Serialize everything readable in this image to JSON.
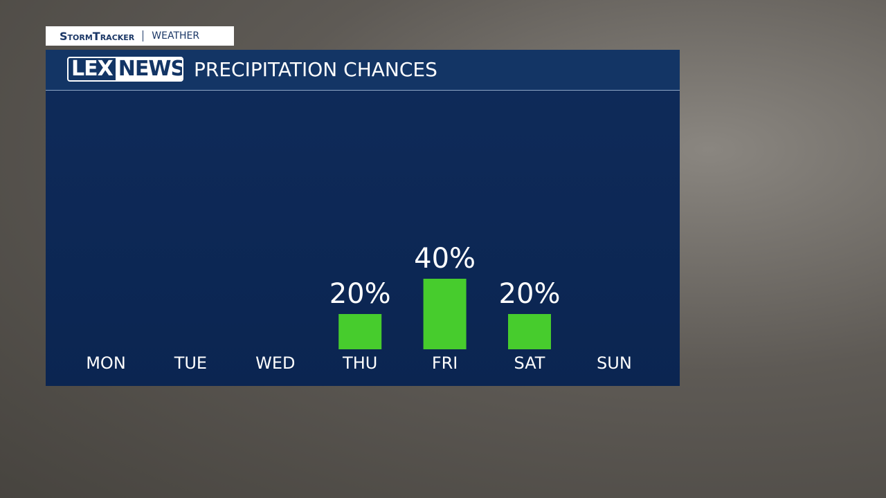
{
  "header": {
    "brand": "StormTracker",
    "section": "WEATHER",
    "logo_left": "LEX",
    "logo_right": "NEWS"
  },
  "chart_data": {
    "type": "bar",
    "title": "PRECIPITATION CHANCES",
    "categories": [
      "MON",
      "TUE",
      "WED",
      "THU",
      "FRI",
      "SAT",
      "SUN"
    ],
    "values": [
      null,
      null,
      null,
      20,
      40,
      20,
      null
    ],
    "value_labels": [
      null,
      null,
      null,
      "20%",
      "40%",
      "20%",
      null
    ],
    "color": "#47cc2d"
  }
}
